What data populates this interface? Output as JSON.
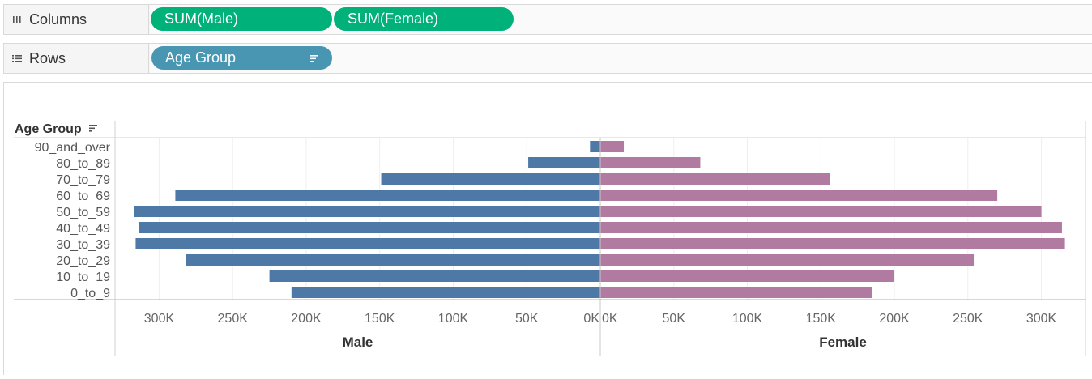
{
  "shelves": {
    "columns": {
      "label": "Columns",
      "icon": "columns-icon",
      "pills": [
        {
          "label": "SUM(Male)",
          "color": "#00b27a"
        },
        {
          "label": "SUM(Female)",
          "color": "#00b27a"
        }
      ]
    },
    "rows": {
      "label": "Rows",
      "icon": "rows-icon",
      "pills": [
        {
          "label": "Age Group",
          "color": "#4996b2",
          "icon": "sort-icon"
        }
      ]
    }
  },
  "chart_data": {
    "type": "bar",
    "orientation": "horizontal",
    "row_header": "Age Group",
    "categories": [
      "90_and_over",
      "80_to_89",
      "70_to_79",
      "60_to_69",
      "50_to_59",
      "40_to_49",
      "30_to_39",
      "20_to_29",
      "10_to_19",
      "0_to_9"
    ],
    "series": [
      {
        "name": "Male",
        "color": "#4e79a7",
        "direction": "reversed",
        "values": [
          7000,
          49000,
          149000,
          289000,
          317000,
          314000,
          316000,
          282000,
          225000,
          210000
        ],
        "xlim": [
          0,
          330000
        ],
        "ticks": [
          "300K",
          "250K",
          "200K",
          "150K",
          "100K",
          "50K",
          "0K"
        ],
        "xlabel": "Male"
      },
      {
        "name": "Female",
        "color": "#b07aa1",
        "values": [
          16000,
          68000,
          156000,
          270000,
          300000,
          314000,
          316000,
          254000,
          200000,
          185000
        ],
        "xlim": [
          0,
          330000
        ],
        "ticks": [
          "0K",
          "50K",
          "100K",
          "150K",
          "200K",
          "250K",
          "300K"
        ],
        "xlabel": "Female"
      }
    ],
    "grid": true,
    "legend": "none"
  }
}
